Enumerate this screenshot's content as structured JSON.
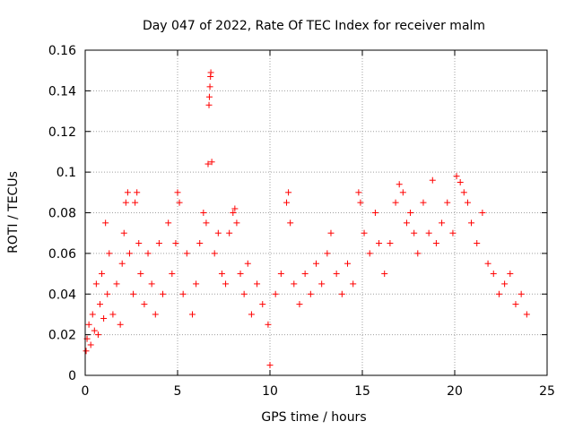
{
  "chart_data": {
    "type": "scatter",
    "title": "Day 047 of 2022, Rate Of TEC Index for receiver malm",
    "xlabel": "GPS time / hours",
    "ylabel": "ROTI / TECUs",
    "xlim": [
      0,
      25
    ],
    "ylim": [
      0,
      0.16
    ],
    "xticks": [
      0,
      5,
      10,
      15,
      20,
      25
    ],
    "xtick_labels": [
      "0",
      "5",
      "10",
      "15",
      "20",
      "25"
    ],
    "yticks": [
      0,
      0.02,
      0.04,
      0.06,
      0.08,
      0.1,
      0.12,
      0.14,
      0.16
    ],
    "ytick_labels": [
      "0",
      "0.02",
      "0.04",
      "0.06",
      "0.08",
      "0.1",
      "0.12",
      "0.14",
      "0.16"
    ],
    "grid": true,
    "marker": "plus",
    "marker_color": "#ff0000",
    "series": [
      {
        "points": [
          [
            0.05,
            0.012
          ],
          [
            0.1,
            0.018
          ],
          [
            0.2,
            0.025
          ],
          [
            0.3,
            0.015
          ],
          [
            0.4,
            0.03
          ],
          [
            0.5,
            0.022
          ],
          [
            0.6,
            0.045
          ],
          [
            0.7,
            0.02
          ],
          [
            0.8,
            0.035
          ],
          [
            0.9,
            0.05
          ],
          [
            1.0,
            0.028
          ],
          [
            1.1,
            0.075
          ],
          [
            1.2,
            0.04
          ],
          [
            1.3,
            0.06
          ],
          [
            1.5,
            0.03
          ],
          [
            1.7,
            0.045
          ],
          [
            1.9,
            0.025
          ],
          [
            2.0,
            0.055
          ],
          [
            2.1,
            0.07
          ],
          [
            2.2,
            0.085
          ],
          [
            2.3,
            0.09
          ],
          [
            2.4,
            0.06
          ],
          [
            2.6,
            0.04
          ],
          [
            2.7,
            0.085
          ],
          [
            2.8,
            0.09
          ],
          [
            2.9,
            0.065
          ],
          [
            3.0,
            0.05
          ],
          [
            3.2,
            0.035
          ],
          [
            3.4,
            0.06
          ],
          [
            3.6,
            0.045
          ],
          [
            3.8,
            0.03
          ],
          [
            4.0,
            0.065
          ],
          [
            4.2,
            0.04
          ],
          [
            4.5,
            0.075
          ],
          [
            4.7,
            0.05
          ],
          [
            4.9,
            0.065
          ],
          [
            5.0,
            0.09
          ],
          [
            5.1,
            0.085
          ],
          [
            5.3,
            0.04
          ],
          [
            5.5,
            0.06
          ],
          [
            5.8,
            0.03
          ],
          [
            6.0,
            0.045
          ],
          [
            6.2,
            0.065
          ],
          [
            6.4,
            0.08
          ],
          [
            6.55,
            0.075
          ],
          [
            6.65,
            0.104
          ],
          [
            6.7,
            0.133
          ],
          [
            6.72,
            0.137
          ],
          [
            6.75,
            0.142
          ],
          [
            6.78,
            0.147
          ],
          [
            6.8,
            0.149
          ],
          [
            6.85,
            0.105
          ],
          [
            7.0,
            0.06
          ],
          [
            7.2,
            0.07
          ],
          [
            7.4,
            0.05
          ],
          [
            7.6,
            0.045
          ],
          [
            7.8,
            0.07
          ],
          [
            8.0,
            0.08
          ],
          [
            8.1,
            0.082
          ],
          [
            8.2,
            0.075
          ],
          [
            8.4,
            0.05
          ],
          [
            8.6,
            0.04
          ],
          [
            8.8,
            0.055
          ],
          [
            9.0,
            0.03
          ],
          [
            9.3,
            0.045
          ],
          [
            9.6,
            0.035
          ],
          [
            9.9,
            0.025
          ],
          [
            10.0,
            0.005
          ],
          [
            10.3,
            0.04
          ],
          [
            10.6,
            0.05
          ],
          [
            10.9,
            0.085
          ],
          [
            11.0,
            0.09
          ],
          [
            11.1,
            0.075
          ],
          [
            11.3,
            0.045
          ],
          [
            11.6,
            0.035
          ],
          [
            11.9,
            0.05
          ],
          [
            12.2,
            0.04
          ],
          [
            12.5,
            0.055
          ],
          [
            12.8,
            0.045
          ],
          [
            13.1,
            0.06
          ],
          [
            13.3,
            0.07
          ],
          [
            13.6,
            0.05
          ],
          [
            13.9,
            0.04
          ],
          [
            14.2,
            0.055
          ],
          [
            14.5,
            0.045
          ],
          [
            14.8,
            0.09
          ],
          [
            14.9,
            0.085
          ],
          [
            15.1,
            0.07
          ],
          [
            15.4,
            0.06
          ],
          [
            15.7,
            0.08
          ],
          [
            15.9,
            0.065
          ],
          [
            16.2,
            0.05
          ],
          [
            16.5,
            0.065
          ],
          [
            16.8,
            0.085
          ],
          [
            17.0,
            0.094
          ],
          [
            17.2,
            0.09
          ],
          [
            17.4,
            0.075
          ],
          [
            17.6,
            0.08
          ],
          [
            17.8,
            0.07
          ],
          [
            18.0,
            0.06
          ],
          [
            18.3,
            0.085
          ],
          [
            18.6,
            0.07
          ],
          [
            18.8,
            0.096
          ],
          [
            19.0,
            0.065
          ],
          [
            19.3,
            0.075
          ],
          [
            19.6,
            0.085
          ],
          [
            19.9,
            0.07
          ],
          [
            20.1,
            0.098
          ],
          [
            20.3,
            0.095
          ],
          [
            20.5,
            0.09
          ],
          [
            20.7,
            0.085
          ],
          [
            20.9,
            0.075
          ],
          [
            21.2,
            0.065
          ],
          [
            21.5,
            0.08
          ],
          [
            21.8,
            0.055
          ],
          [
            22.1,
            0.05
          ],
          [
            22.4,
            0.04
          ],
          [
            22.7,
            0.045
          ],
          [
            23.0,
            0.05
          ],
          [
            23.3,
            0.035
          ],
          [
            23.6,
            0.04
          ],
          [
            23.9,
            0.03
          ]
        ]
      }
    ]
  }
}
